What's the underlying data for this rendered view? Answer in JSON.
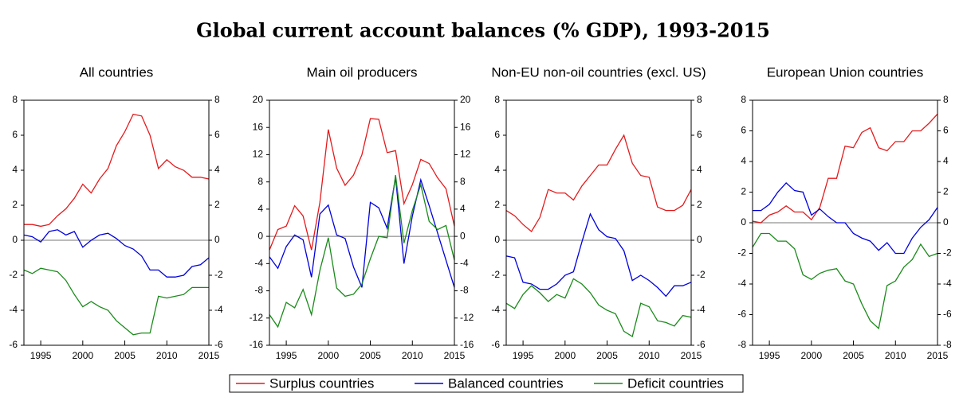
{
  "title": "Global current account balances (% GDP), 1993-2015",
  "legend": [
    {
      "name": "Surplus countries",
      "color": "#e41a1c"
    },
    {
      "name": "Balanced countries",
      "color": "#0000dd"
    },
    {
      "name": "Deficit countries",
      "color": "#1a8a1a"
    }
  ],
  "chart_data": [
    {
      "type": "line",
      "title": "All countries",
      "x": [
        1993,
        1994,
        1995,
        1996,
        1997,
        1998,
        1999,
        2000,
        2001,
        2002,
        2003,
        2004,
        2005,
        2006,
        2007,
        2008,
        2009,
        2010,
        2011,
        2012,
        2013,
        2014,
        2015
      ],
      "xlim": [
        1993,
        2015
      ],
      "xticks": [
        1995,
        2000,
        2005,
        2010,
        2015
      ],
      "ylim": [
        -6,
        8
      ],
      "yticks": [
        -6,
        -4,
        -2,
        0,
        2,
        4,
        6,
        8
      ],
      "y2lim": [
        -6,
        8
      ],
      "y2ticks": [
        -6,
        -4,
        -2,
        0,
        2,
        4,
        6,
        8
      ],
      "series": [
        {
          "color": "#e41a1c",
          "values": [
            0.9,
            0.9,
            0.8,
            0.9,
            1.4,
            1.8,
            2.4,
            3.2,
            2.7,
            3.5,
            4.1,
            5.4,
            6.2,
            7.2,
            7.1,
            6.0,
            4.1,
            4.6,
            4.2,
            4.0,
            3.6,
            3.6,
            3.5
          ]
        },
        {
          "color": "#0000dd",
          "values": [
            0.3,
            0.2,
            -0.1,
            0.5,
            0.6,
            0.3,
            0.5,
            -0.4,
            0.0,
            0.3,
            0.4,
            0.1,
            -0.3,
            -0.5,
            -0.9,
            -1.7,
            -1.7,
            -2.1,
            -2.1,
            -2.0,
            -1.5,
            -1.4,
            -1.0
          ]
        },
        {
          "color": "#1a8a1a",
          "values": [
            -1.7,
            -1.9,
            -1.6,
            -1.7,
            -1.8,
            -2.3,
            -3.1,
            -3.8,
            -3.5,
            -3.8,
            -4.0,
            -4.6,
            -5.0,
            -5.4,
            -5.3,
            -5.3,
            -3.2,
            -3.3,
            -3.2,
            -3.1,
            -2.7,
            -2.7,
            -2.7
          ]
        }
      ]
    },
    {
      "type": "line",
      "title": "Main oil producers",
      "x": [
        1993,
        1994,
        1995,
        1996,
        1997,
        1998,
        1999,
        2000,
        2001,
        2002,
        2003,
        2004,
        2005,
        2006,
        2007,
        2008,
        2009,
        2010,
        2011,
        2012,
        2013,
        2014,
        2015
      ],
      "xlim": [
        1993,
        2015
      ],
      "xticks": [
        1995,
        2000,
        2005,
        2010,
        2015
      ],
      "ylim": [
        -16,
        20
      ],
      "yticks": [
        -16,
        -12,
        -8,
        -4,
        0,
        4,
        8,
        12,
        16,
        20
      ],
      "y2lim": [
        -16,
        20
      ],
      "y2ticks": [
        -16,
        -12,
        -8,
        -4,
        0,
        4,
        8,
        12,
        16,
        20
      ],
      "series": [
        {
          "color": "#e41a1c",
          "values": [
            -2,
            1,
            1.5,
            4.5,
            3,
            -2,
            5,
            15.7,
            10,
            7.5,
            9,
            12,
            17.3,
            17.2,
            12.3,
            12.6,
            4.8,
            7.6,
            11.3,
            10.7,
            8.6,
            7,
            1.5
          ]
        },
        {
          "color": "#0000dd",
          "values": [
            -3,
            -4.7,
            -1.5,
            0.2,
            -0.5,
            -6,
            3.3,
            4.6,
            0.2,
            -0.3,
            -4.5,
            -7.5,
            5,
            4.2,
            1.2,
            8.7,
            -4,
            3,
            8.3,
            4.5,
            0.5,
            -3.5,
            -7.5
          ]
        },
        {
          "color": "#1a8a1a",
          "values": [
            -11.5,
            -13.3,
            -9.7,
            -10.5,
            -7.8,
            -11.5,
            -5,
            -0.2,
            -7.6,
            -8.8,
            -8.5,
            -7,
            -3.3,
            0,
            -0.2,
            9,
            -1,
            3.8,
            7.6,
            2.2,
            1,
            1.6,
            -3.5
          ]
        }
      ]
    },
    {
      "type": "line",
      "title": "Non-EU non-oil countries (excl. US)",
      "x": [
        1993,
        1994,
        1995,
        1996,
        1997,
        1998,
        1999,
        2000,
        2001,
        2002,
        2003,
        2004,
        2005,
        2006,
        2007,
        2008,
        2009,
        2010,
        2011,
        2012,
        2013,
        2014,
        2015
      ],
      "xlim": [
        1993,
        2015
      ],
      "xticks": [
        1995,
        2000,
        2005,
        2010,
        2015
      ],
      "ylim": [
        -6,
        8
      ],
      "yticks": [
        -6,
        -4,
        -2,
        0,
        2,
        4,
        6,
        8
      ],
      "y2lim": [
        -6,
        8
      ],
      "y2ticks": [
        -6,
        -4,
        -2,
        0,
        2,
        4,
        6,
        8
      ],
      "series": [
        {
          "color": "#e41a1c",
          "values": [
            1.7,
            1.4,
            0.9,
            0.5,
            1.3,
            2.9,
            2.7,
            2.7,
            2.3,
            3.1,
            3.7,
            4.3,
            4.3,
            5.2,
            6.0,
            4.4,
            3.7,
            3.6,
            1.9,
            1.7,
            1.7,
            2.0,
            2.9
          ]
        },
        {
          "color": "#0000dd",
          "values": [
            -0.9,
            -1.0,
            -2.4,
            -2.5,
            -2.8,
            -2.8,
            -2.5,
            -2.0,
            -1.8,
            -0.1,
            1.5,
            0.6,
            0.2,
            0.1,
            -0.6,
            -2.3,
            -2.0,
            -2.3,
            -2.7,
            -3.2,
            -2.6,
            -2.6,
            -2.4
          ]
        },
        {
          "color": "#1a8a1a",
          "values": [
            -3.6,
            -3.9,
            -3.1,
            -2.6,
            -3.0,
            -3.5,
            -3.1,
            -3.3,
            -2.2,
            -2.5,
            -3.0,
            -3.7,
            -4.0,
            -4.2,
            -5.2,
            -5.5,
            -3.6,
            -3.8,
            -4.6,
            -4.7,
            -4.9,
            -4.3,
            -4.4
          ]
        }
      ]
    },
    {
      "type": "line",
      "title": "European Union countries",
      "x": [
        1993,
        1994,
        1995,
        1996,
        1997,
        1998,
        1999,
        2000,
        2001,
        2002,
        2003,
        2004,
        2005,
        2006,
        2007,
        2008,
        2009,
        2010,
        2011,
        2012,
        2013,
        2014,
        2015
      ],
      "xlim": [
        1993,
        2015
      ],
      "xticks": [
        1995,
        2000,
        2005,
        2010,
        2015
      ],
      "ylim": [
        -8,
        8
      ],
      "yticks": [
        -8,
        -6,
        -4,
        -2,
        0,
        2,
        4,
        6,
        8
      ],
      "y2lim": [
        -8,
        8
      ],
      "y2ticks": [
        -8,
        -6,
        -4,
        -2,
        0,
        2,
        4,
        6,
        8
      ],
      "series": [
        {
          "color": "#e41a1c",
          "values": [
            0.1,
            0,
            0.5,
            0.7,
            1.1,
            0.7,
            0.7,
            0.2,
            1.0,
            2.9,
            2.9,
            5.0,
            4.9,
            5.9,
            6.2,
            4.9,
            4.7,
            5.3,
            5.3,
            6.0,
            6.0,
            6.5,
            7.1
          ]
        },
        {
          "color": "#0000dd",
          "values": [
            0.8,
            0.8,
            1.2,
            2.0,
            2.6,
            2.1,
            2.0,
            0.5,
            0.9,
            0.4,
            0,
            0,
            -0.7,
            -1.0,
            -1.2,
            -1.8,
            -1.3,
            -2.0,
            -2.0,
            -1.0,
            -0.3,
            0.2,
            1.0
          ]
        },
        {
          "color": "#1a8a1a",
          "values": [
            -1.6,
            -0.7,
            -0.7,
            -1.2,
            -1.2,
            -1.7,
            -3.4,
            -3.7,
            -3.3,
            -3.1,
            -3.0,
            -3.8,
            -4.0,
            -5.3,
            -6.4,
            -6.9,
            -4.1,
            -3.8,
            -2.9,
            -2.4,
            -1.4,
            -2.2,
            -2.0
          ]
        }
      ]
    }
  ]
}
